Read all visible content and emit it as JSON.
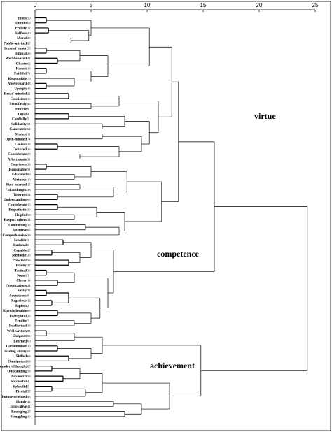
{
  "chart_data": {
    "type": "dendrogram",
    "x_ticks": [
      "0",
      "5",
      "10",
      "15",
      "20",
      "25"
    ],
    "xlim": [
      0,
      25
    ],
    "leaves": [
      {
        "label": "Pious",
        "id": "50"
      },
      {
        "label": "Dutiful",
        "id": "63"
      },
      {
        "label": "Probity",
        "id": "12"
      },
      {
        "label": "Selfless",
        "id": "40"
      },
      {
        "label": "Moral",
        "id": "20"
      },
      {
        "label": "Public-spirited",
        "id": "37"
      },
      {
        "label": "Sense of honor",
        "id": "55"
      },
      {
        "label": "Ethical",
        "id": "26"
      },
      {
        "label": "Well-behaved",
        "id": "44"
      },
      {
        "label": "Chaste",
        "id": "62"
      },
      {
        "label": "Honest",
        "id": "19"
      },
      {
        "label": "Faithful",
        "id": "71"
      },
      {
        "label": "Responsible",
        "id": "70"
      },
      {
        "label": "Aboveboard",
        "id": "43"
      },
      {
        "label": "Upright",
        "id": "43"
      },
      {
        "label": "Broad-minded",
        "id": "21"
      },
      {
        "label": "Consistent",
        "id": "16"
      },
      {
        "label": "Steadfastly",
        "id": "46"
      },
      {
        "label": "Sincere",
        "id": "9"
      },
      {
        "label": "Loyal",
        "id": "4"
      },
      {
        "label": "Cordially",
        "id": "5"
      },
      {
        "label": "Solidarity",
        "id": "61"
      },
      {
        "label": "Concentric",
        "id": "64"
      },
      {
        "label": "Modest",
        "id": "11"
      },
      {
        "label": "Open-minded",
        "id": "74"
      },
      {
        "label": "Lenient",
        "id": "23"
      },
      {
        "label": "Cultured",
        "id": "16"
      },
      {
        "label": "Considerate",
        "id": "29"
      },
      {
        "label": "Affectionate",
        "id": "31"
      },
      {
        "label": "Courteous",
        "id": "33"
      },
      {
        "label": "Reasonable",
        "id": "51"
      },
      {
        "label": "Educated",
        "id": "80"
      },
      {
        "label": "Virtuous",
        "id": "10"
      },
      {
        "label": "Kind-hearted",
        "id": "17"
      },
      {
        "label": "Philanthropic",
        "id": "38"
      },
      {
        "label": "Tolerant",
        "id": "54"
      },
      {
        "label": "Understanding",
        "id": "65"
      },
      {
        "label": "Considerate",
        "id": "15"
      },
      {
        "label": "Empathetic",
        "id": "30"
      },
      {
        "label": "Helpful",
        "id": "58"
      },
      {
        "label": "Respect others",
        "id": "34"
      },
      {
        "label": "Comforting",
        "id": "35"
      },
      {
        "label": "Attentive",
        "id": "66"
      },
      {
        "label": "Comprehensive",
        "id": "39"
      },
      {
        "label": "Sensible",
        "id": "3"
      },
      {
        "label": "Rational",
        "id": "0"
      },
      {
        "label": "Capable",
        "id": "27"
      },
      {
        "label": "Methodic",
        "id": "30"
      },
      {
        "label": "Prescient",
        "id": "56"
      },
      {
        "label": "Brainy",
        "id": "37"
      },
      {
        "label": "Tactical",
        "id": "36"
      },
      {
        "label": "Smart",
        "id": "1"
      },
      {
        "label": "Clever",
        "id": "14"
      },
      {
        "label": "Perspicacious",
        "id": "24"
      },
      {
        "label": "Savvy",
        "id": "32"
      },
      {
        "label": "Acumtoons",
        "id": "8"
      },
      {
        "label": "Sagacious",
        "id": "13"
      },
      {
        "label": "Sapient",
        "id": "2"
      },
      {
        "label": "Knowledgeable",
        "id": "69"
      },
      {
        "label": "Thoughtful",
        "id": "26"
      },
      {
        "label": "Erudite",
        "id": "7"
      },
      {
        "label": "Intellectual",
        "id": "18"
      },
      {
        "label": "Well-written",
        "id": "81"
      },
      {
        "label": "Eloquent",
        "id": "53"
      },
      {
        "label": "Learned",
        "id": "60"
      },
      {
        "label": "Consummate",
        "id": "30"
      },
      {
        "label": "leading ability",
        "id": "62"
      },
      {
        "label": "Skilled",
        "id": "68"
      },
      {
        "label": "Omnipotent",
        "id": "68"
      },
      {
        "label": "Wonderfulthought",
        "id": "67"
      },
      {
        "label": "Outstanding",
        "id": "58"
      },
      {
        "label": "Top-notch",
        "id": "59"
      },
      {
        "label": "Successful",
        "id": "4"
      },
      {
        "label": "Splendid",
        "id": "5"
      },
      {
        "label": "Pivotal",
        "id": "57"
      },
      {
        "label": "Future-oriented",
        "id": "45"
      },
      {
        "label": "Handy",
        "id": "42"
      },
      {
        "label": "Innovative",
        "id": "44"
      },
      {
        "label": "Emerging",
        "id": "27"
      },
      {
        "label": "Struggling",
        "id": "10"
      }
    ],
    "clusters": [
      {
        "name": "virtue",
        "first_leaf": 0,
        "last_leaf": 43
      },
      {
        "name": "competence",
        "first_leaf": 44,
        "last_leaf": 61
      },
      {
        "name": "achievement",
        "first_leaf": 62,
        "last_leaf": 79
      }
    ]
  },
  "labels": {
    "virtue": "virtue",
    "competence": "competence",
    "achievement": "achievement"
  }
}
